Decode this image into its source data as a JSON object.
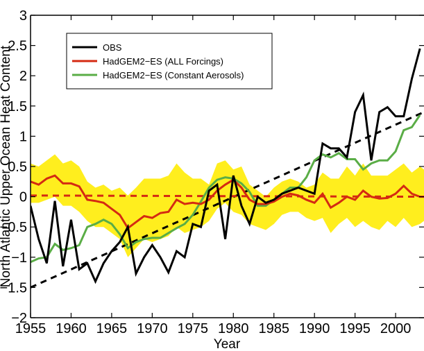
{
  "chart_data": {
    "type": "line",
    "title": "",
    "xlabel": "Year",
    "ylabel": "North Atlantic Upper Ocean Heat Content",
    "xlim": [
      1955,
      2003.5
    ],
    "ylim": [
      -2,
      3
    ],
    "x_ticks": [
      1955,
      1960,
      1965,
      1970,
      1975,
      1980,
      1985,
      1990,
      1995,
      2000
    ],
    "y_ticks": [
      -2,
      -1.5,
      -1,
      -0.5,
      0,
      0.5,
      1,
      1.5,
      2,
      2.5,
      3
    ],
    "x_tick_labels": [
      "1955",
      "1960",
      "1965",
      "1970",
      "1975",
      "1980",
      "1985",
      "1990",
      "1995",
      "2000"
    ],
    "y_tick_labels": [
      "−2",
      "−1.5",
      "−1",
      "−0.5",
      "0",
      "0.5",
      "1",
      "1.5",
      "2",
      "2.5",
      "3"
    ],
    "grid": false,
    "legend": {
      "position": "top-left",
      "entries": [
        {
          "label": "OBS",
          "color": "#000000"
        },
        {
          "label": "HadGEM2−ES (ALL Forcings)",
          "color": "#d42a12"
        },
        {
          "label": "HadGEM2−ES (Constant Aerosols)",
          "color": "#5aad46"
        }
      ]
    },
    "band": {
      "color": "#ffee1e",
      "x": [
        1955,
        1956,
        1957,
        1958,
        1959,
        1960,
        1961,
        1962,
        1963,
        1964,
        1965,
        1966,
        1967,
        1968,
        1969,
        1970,
        1971,
        1972,
        1973,
        1974,
        1975,
        1976,
        1977,
        1978,
        1979,
        1980,
        1981,
        1982,
        1983,
        1984,
        1985,
        1986,
        1987,
        1988,
        1989,
        1990,
        1991,
        1992,
        1993,
        1994,
        1995,
        1996,
        1997,
        1998,
        1999,
        2000,
        2001,
        2002,
        2003,
        2003.5
      ],
      "upper": [
        0.55,
        0.5,
        0.6,
        0.7,
        0.55,
        0.6,
        0.5,
        0.25,
        0.15,
        0.2,
        0.1,
        0.15,
        0.02,
        0.15,
        0.3,
        0.3,
        0.3,
        0.35,
        0.55,
        0.4,
        0.3,
        0.3,
        0.2,
        0.55,
        0.6,
        0.45,
        0.5,
        0.2,
        0.1,
        0.0,
        0.15,
        0.25,
        0.3,
        0.25,
        0.15,
        0.2,
        0.4,
        0.3,
        0.3,
        0.5,
        0.35,
        0.55,
        0.35,
        0.35,
        0.35,
        0.45,
        0.55,
        0.4,
        0.5,
        0.45
      ],
      "lower": [
        -0.1,
        -0.1,
        -0.05,
        0.0,
        -0.15,
        -0.15,
        -0.25,
        -0.4,
        -0.5,
        -0.5,
        -0.6,
        -0.7,
        -1.0,
        -0.85,
        -0.7,
        -0.75,
        -0.7,
        -0.65,
        -0.5,
        -0.6,
        -0.55,
        -0.5,
        -0.4,
        -0.2,
        -0.1,
        -0.25,
        -0.3,
        -0.45,
        -0.5,
        -0.55,
        -0.45,
        -0.3,
        -0.25,
        -0.25,
        -0.35,
        -0.4,
        -0.35,
        -0.6,
        -0.45,
        -0.35,
        -0.5,
        -0.4,
        -0.5,
        -0.55,
        -0.4,
        -0.5,
        -0.35,
        -0.5,
        -0.45,
        -0.4
      ]
    },
    "series": [
      {
        "name": "OBS",
        "color": "#000000",
        "x": [
          1955,
          1956,
          1957,
          1958,
          1959,
          1960,
          1961,
          1962,
          1963,
          1964,
          1965,
          1966,
          1967,
          1968,
          1969,
          1970,
          1971,
          1972,
          1973,
          1974,
          1975,
          1976,
          1977,
          1978,
          1979,
          1980,
          1981,
          1982,
          1983,
          1984,
          1985,
          1986,
          1987,
          1988,
          1989,
          1990,
          1991,
          1992,
          1993,
          1994,
          1995,
          1996,
          1997,
          1998,
          1999,
          2000,
          2001,
          2002,
          2003
        ],
        "y": [
          -0.15,
          -0.7,
          -1.1,
          -0.07,
          -1.15,
          -0.38,
          -1.2,
          -1.1,
          -1.4,
          -1.1,
          -0.9,
          -0.75,
          -0.5,
          -1.27,
          -1.0,
          -0.8,
          -1.0,
          -1.25,
          -0.9,
          -1.0,
          -0.45,
          -0.5,
          0.1,
          0.2,
          -0.7,
          0.35,
          -0.15,
          -0.45,
          0.0,
          -0.1,
          -0.05,
          0.05,
          0.1,
          0.15,
          0.1,
          0.05,
          0.88,
          0.8,
          0.8,
          0.65,
          1.4,
          1.68,
          0.6,
          1.4,
          1.48,
          1.33,
          1.33,
          1.95,
          2.45
        ]
      },
      {
        "name": "HadGEM2−ES (ALL Forcings)",
        "color": "#d42a12",
        "x": [
          1955,
          1956,
          1957,
          1958,
          1959,
          1960,
          1961,
          1962,
          1963,
          1964,
          1965,
          1966,
          1967,
          1968,
          1969,
          1970,
          1971,
          1972,
          1973,
          1974,
          1975,
          1976,
          1977,
          1978,
          1979,
          1980,
          1981,
          1982,
          1983,
          1984,
          1985,
          1986,
          1987,
          1988,
          1989,
          1990,
          1991,
          1992,
          1993,
          1994,
          1995,
          1996,
          1997,
          1998,
          1999,
          2000,
          2001,
          2002,
          2003
        ],
        "y": [
          0.25,
          0.2,
          0.3,
          0.35,
          0.22,
          0.22,
          0.17,
          -0.05,
          -0.07,
          -0.1,
          -0.2,
          -0.3,
          -0.52,
          -0.42,
          -0.32,
          -0.35,
          -0.27,
          -0.25,
          -0.05,
          -0.12,
          -0.1,
          -0.12,
          -0.05,
          0.1,
          0.2,
          0.28,
          0.15,
          -0.05,
          -0.12,
          -0.12,
          -0.08,
          0.0,
          0.05,
          0.02,
          -0.05,
          -0.1,
          0.05,
          -0.18,
          -0.1,
          0.0,
          -0.05,
          0.1,
          0.0,
          -0.03,
          -0.02,
          0.05,
          0.18,
          0.05,
          0.0
        ]
      },
      {
        "name": "HadGEM2−ES (Constant Aerosols)",
        "color": "#5aad46",
        "x": [
          1955,
          1956,
          1957,
          1958,
          1959,
          1960,
          1961,
          1962,
          1963,
          1964,
          1965,
          1966,
          1967,
          1968,
          1969,
          1970,
          1971,
          1972,
          1973,
          1974,
          1975,
          1976,
          1977,
          1978,
          1979,
          1980,
          1981,
          1982,
          1983,
          1984,
          1985,
          1986,
          1987,
          1988,
          1989,
          1990,
          1991,
          1992,
          1993,
          1994,
          1995,
          1996,
          1997,
          1998,
          1999,
          2000,
          2001,
          2002,
          2003
        ],
        "y": [
          -1.08,
          -1.02,
          -1.0,
          -0.78,
          -0.88,
          -0.85,
          -0.8,
          -0.5,
          -0.45,
          -0.38,
          -0.45,
          -0.62,
          -0.85,
          -0.75,
          -0.7,
          -0.68,
          -0.68,
          -0.6,
          -0.52,
          -0.45,
          -0.3,
          -0.08,
          0.15,
          0.28,
          0.32,
          0.3,
          0.22,
          0.08,
          -0.15,
          -0.15,
          -0.05,
          0.05,
          0.15,
          0.15,
          0.32,
          0.6,
          0.7,
          0.65,
          0.72,
          0.62,
          0.62,
          0.45,
          0.55,
          0.6,
          0.6,
          0.75,
          1.1,
          1.15,
          1.35
        ]
      }
    ],
    "reference_lines": [
      {
        "color": "#000000",
        "dash": true,
        "x": [
          1955,
          2003.5
        ],
        "y": [
          -1.5,
          1.4
        ]
      },
      {
        "color": "#d42a12",
        "dash": true,
        "x": [
          1955,
          2003.5
        ],
        "y": [
          0.02,
          0.0
        ]
      }
    ]
  }
}
